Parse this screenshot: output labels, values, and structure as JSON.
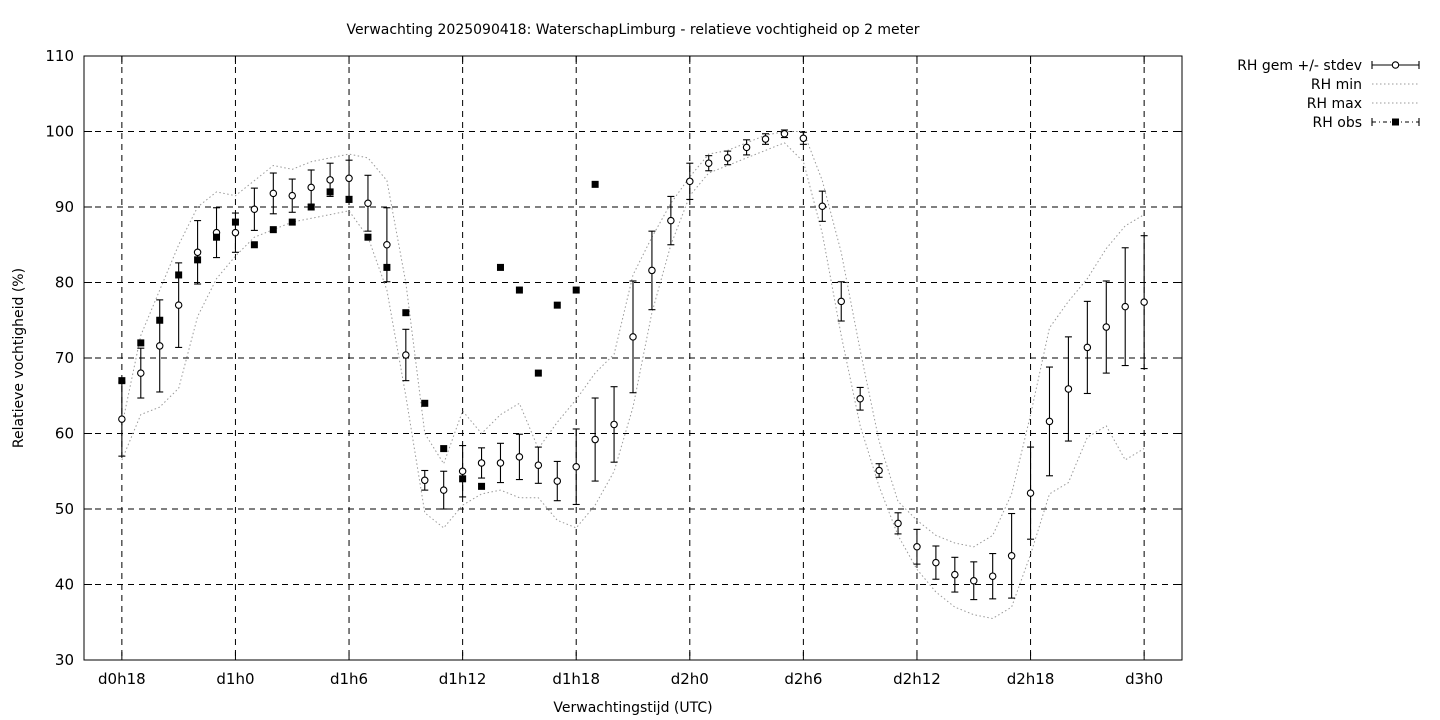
{
  "chart_data": {
    "type": "line",
    "title": "Verwachting 2025090418: WaterschapLimburg - relatieve vochtigheid op 2 meter",
    "xlabel": "Verwachtingstijd (UTC)",
    "ylabel": "Relatieve vochtigheid (%)",
    "ylim": [
      30,
      110
    ],
    "yticks": [
      30,
      40,
      50,
      60,
      70,
      80,
      90,
      100,
      110
    ],
    "xlim": [
      16,
      74
    ],
    "xticks": [
      {
        "x": 18,
        "label": "d0h18"
      },
      {
        "x": 24,
        "label": "d1h0"
      },
      {
        "x": 30,
        "label": "d1h6"
      },
      {
        "x": 36,
        "label": "d1h12"
      },
      {
        "x": 42,
        "label": "d1h18"
      },
      {
        "x": 48,
        "label": "d2h0"
      },
      {
        "x": 54,
        "label": "d2h6"
      },
      {
        "x": 60,
        "label": "d2h12"
      },
      {
        "x": 66,
        "label": "d2h18"
      },
      {
        "x": 72,
        "label": "d3h0"
      }
    ],
    "grid": true,
    "legend_position": "outside-top-right",
    "legend": [
      {
        "label": "RH gem +/- stdev",
        "style": "errorbar-open-circle"
      },
      {
        "label": "RH min",
        "style": "dotted"
      },
      {
        "label": "RH max",
        "style": "dotted"
      },
      {
        "label": "RH obs",
        "style": "dash-dot-filled-square"
      }
    ],
    "series": [
      {
        "name": "RH gem +/- stdev",
        "x": [
          18,
          19,
          20,
          21,
          22,
          23,
          24,
          25,
          26,
          27,
          28,
          29,
          30,
          31,
          32,
          33,
          34,
          35,
          36,
          37,
          38,
          39,
          40,
          41,
          42,
          43,
          44,
          45,
          46,
          47,
          48,
          49,
          50,
          51,
          52,
          53,
          54,
          55,
          56,
          57,
          58,
          59,
          60,
          61,
          62,
          63,
          64,
          65,
          66,
          67,
          68,
          69,
          70,
          71,
          72
        ],
        "mean": [
          61.9,
          68.0,
          71.6,
          77.0,
          84.0,
          86.6,
          86.6,
          89.7,
          91.8,
          91.5,
          92.6,
          93.6,
          93.8,
          90.5,
          85.0,
          70.4,
          53.8,
          52.5,
          55.0,
          56.1,
          56.1,
          56.9,
          55.8,
          53.7,
          55.6,
          59.2,
          61.2,
          72.8,
          81.6,
          88.2,
          93.4,
          95.8,
          96.5,
          97.9,
          99.0,
          99.7,
          99.1,
          90.1,
          77.5,
          64.6,
          55.1,
          48.1,
          45.0,
          42.9,
          41.3,
          40.5,
          41.1,
          43.8,
          52.1,
          61.6,
          65.9,
          71.4,
          74.1,
          76.8,
          77.4
        ],
        "stdev": [
          4.9,
          3.3,
          6.1,
          5.6,
          4.2,
          3.3,
          2.6,
          2.8,
          2.7,
          2.2,
          2.3,
          2.2,
          2.4,
          3.7,
          4.9,
          3.4,
          1.3,
          2.5,
          3.4,
          2.0,
          2.6,
          3.0,
          2.4,
          2.6,
          5.0,
          5.5,
          5.0,
          7.4,
          5.2,
          3.2,
          2.4,
          1.0,
          0.9,
          1.0,
          0.7,
          0.5,
          0.8,
          2.0,
          2.6,
          1.5,
          0.9,
          1.4,
          2.3,
          2.2,
          2.3,
          2.5,
          3.0,
          5.6,
          6.1,
          7.2,
          6.9,
          6.1,
          6.1,
          7.8,
          8.8
        ]
      },
      {
        "name": "RH min",
        "x": [
          18,
          19,
          20,
          21,
          22,
          23,
          24,
          25,
          26,
          27,
          28,
          29,
          30,
          31,
          32,
          33,
          34,
          35,
          36,
          37,
          38,
          39,
          40,
          41,
          42,
          43,
          44,
          45,
          46,
          47,
          48,
          49,
          50,
          51,
          52,
          53,
          54,
          55,
          56,
          57,
          58,
          59,
          60,
          61,
          62,
          63,
          64,
          65,
          66,
          67,
          68,
          69,
          70,
          71,
          72
        ],
        "values": [
          56.5,
          62.5,
          63.5,
          66.0,
          75.5,
          80.5,
          83.5,
          86.0,
          87.0,
          88.0,
          88.5,
          89.0,
          89.5,
          86.0,
          79.0,
          65.0,
          49.5,
          47.5,
          50.5,
          52.0,
          52.5,
          51.5,
          51.5,
          48.5,
          47.5,
          50.5,
          55.0,
          63.5,
          76.0,
          85.0,
          91.5,
          94.5,
          95.5,
          96.5,
          97.5,
          98.5,
          96.0,
          86.5,
          73.0,
          61.0,
          53.0,
          46.5,
          42.0,
          39.0,
          37.0,
          36.0,
          35.5,
          37.0,
          44.0,
          52.0,
          53.5,
          59.5,
          61.0,
          56.5,
          58.0
        ]
      },
      {
        "name": "RH max",
        "x": [
          18,
          19,
          20,
          21,
          22,
          23,
          24,
          25,
          26,
          27,
          28,
          29,
          30,
          31,
          32,
          33,
          34,
          35,
          36,
          37,
          38,
          39,
          40,
          41,
          42,
          43,
          44,
          45,
          46,
          47,
          48,
          49,
          50,
          51,
          52,
          53,
          54,
          55,
          56,
          57,
          58,
          59,
          60,
          61,
          62,
          63,
          64,
          65,
          66,
          67,
          68,
          69,
          70,
          71,
          72
        ],
        "values": [
          61.0,
          73.0,
          79.0,
          85.0,
          90.0,
          92.0,
          91.5,
          93.5,
          95.5,
          95.0,
          96.0,
          96.5,
          97.0,
          96.5,
          93.5,
          80.0,
          60.0,
          56.0,
          63.0,
          60.0,
          62.5,
          64.0,
          58.0,
          61.5,
          64.5,
          68.0,
          70.5,
          81.0,
          86.0,
          90.5,
          94.0,
          97.0,
          97.5,
          98.5,
          99.5,
          100.0,
          100.0,
          93.5,
          84.0,
          71.0,
          59.0,
          51.0,
          48.5,
          46.5,
          45.5,
          45.0,
          46.5,
          52.0,
          62.5,
          74.0,
          77.5,
          80.5,
          84.5,
          87.5,
          89.0
        ]
      },
      {
        "name": "RH obs",
        "x": [
          18,
          19,
          20,
          21,
          22,
          23,
          24,
          25,
          26,
          27,
          28,
          29,
          30,
          31,
          32,
          33,
          34,
          35,
          36,
          37,
          38,
          39,
          40,
          41,
          42,
          43
        ],
        "values": [
          67,
          72,
          75,
          81,
          83,
          86,
          88,
          85,
          87,
          88,
          90,
          92,
          91,
          86,
          82,
          76,
          64,
          58,
          54,
          53,
          82,
          79,
          68,
          77,
          79,
          93
        ]
      }
    ]
  }
}
